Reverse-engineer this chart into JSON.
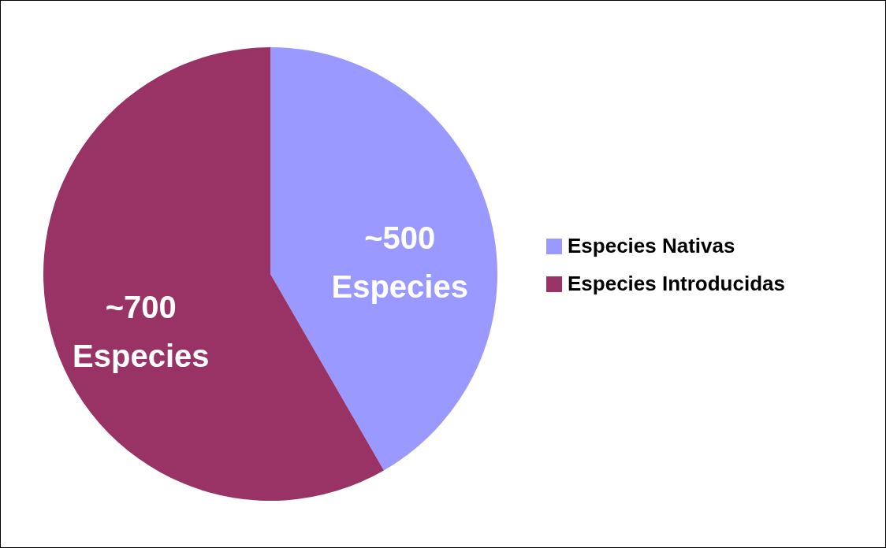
{
  "chart_data": {
    "type": "pie",
    "categories": [
      "Especies Nativas",
      "Especies Introducidas"
    ],
    "values": [
      500,
      700
    ],
    "colors": [
      "#9999ff",
      "#993366"
    ],
    "value_labels": [
      "~500\nEspecies",
      "~700\nEspecies"
    ],
    "legend": "right"
  }
}
